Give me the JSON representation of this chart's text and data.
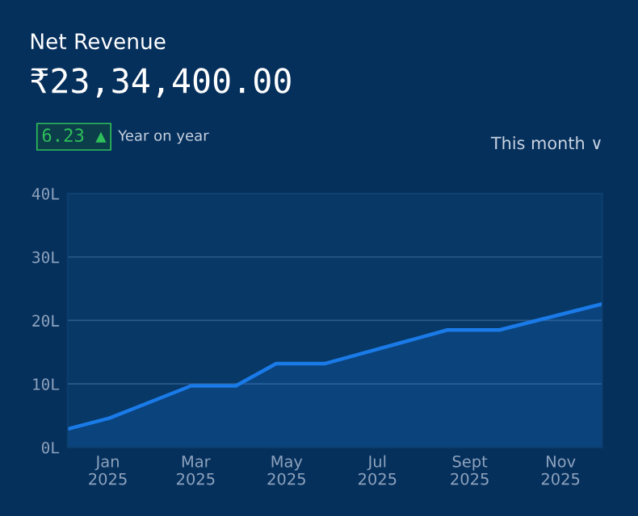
{
  "chart_data": {
    "type": "area",
    "title": "Net Revenue",
    "subtitle": "₹23,34,400.00",
    "annotations": [
      "6.23 ▲",
      "Year on year",
      "This month ∨"
    ],
    "x": [
      "2024-12-05",
      "2025-01-02",
      "2025-02-26",
      "2025-03-28",
      "2025-04-24",
      "2025-05-27",
      "2025-08-17",
      "2025-09-21",
      "2025-11-29"
    ],
    "series": [
      {
        "color": "#1a7be8",
        "values": [
          2.9,
          4.6,
          9.7,
          9.7,
          13.2,
          13.2,
          18.5,
          18.5,
          22.6
        ]
      }
    ],
    "xlim": [
      "2024-12-05",
      "2025-11-29"
    ],
    "xticks": [
      {
        "value": "2025-01-01",
        "label": "Jan\n2025"
      },
      {
        "value": "2025-03-01",
        "label": "Mar\n2025"
      },
      {
        "value": "2025-05-01",
        "label": "May\n2025"
      },
      {
        "value": "2025-07-01",
        "label": "Jul\n2025"
      },
      {
        "value": "2025-09-01",
        "label": "Sept\n2025"
      },
      {
        "value": "2025-11-01",
        "label": "Nov\n2025"
      }
    ],
    "ylim": [
      0,
      40
    ],
    "yticks": [
      {
        "value": 0,
        "label": "0L"
      },
      {
        "value": 10,
        "label": "10L"
      },
      {
        "value": 20,
        "label": "20L"
      },
      {
        "value": 30,
        "label": "30L"
      },
      {
        "value": 40,
        "label": "40L"
      }
    ],
    "grid": "y"
  }
}
